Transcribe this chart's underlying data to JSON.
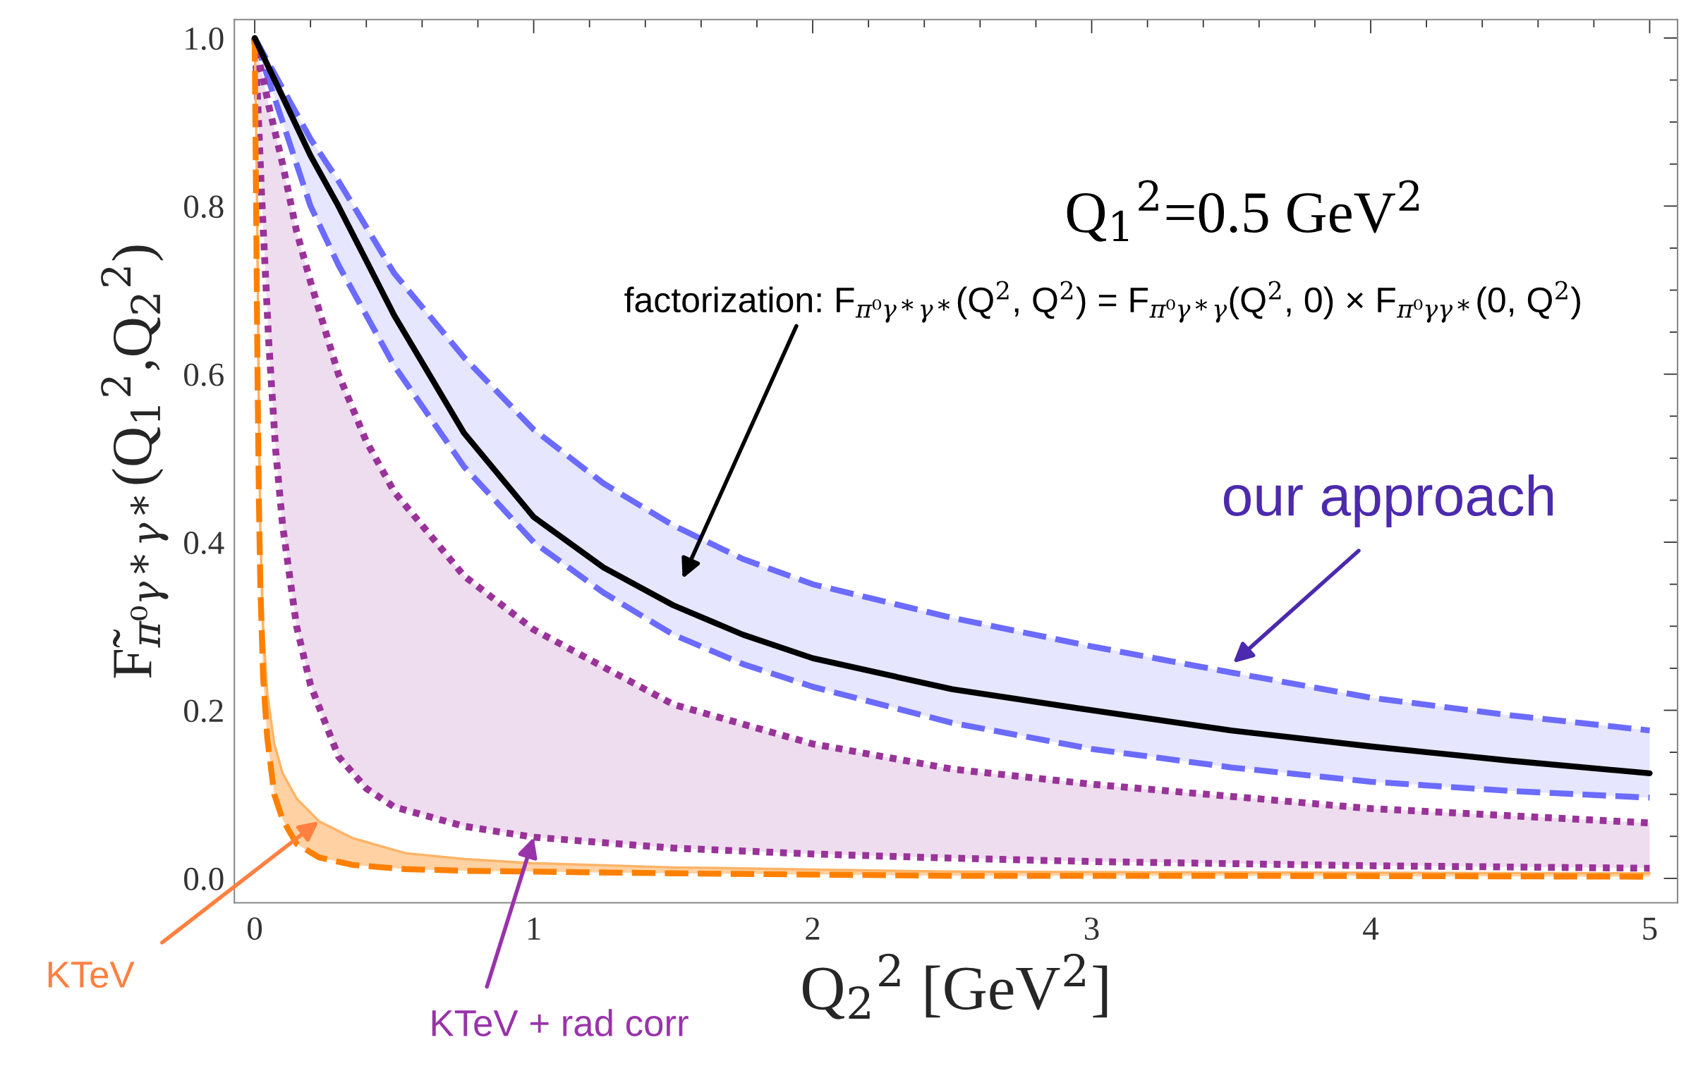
{
  "chart_data": {
    "type": "line",
    "xlabel": "Q$_{2}$$^{2}$ [GeV$^{2}$]",
    "ylabel": "F̃$_{π⁰γ*γ*}$(Q$_{1}$$^{2}$,Q$_{2}$$^{2}$)",
    "xlim": [
      -0.073,
      5.1
    ],
    "ylim": [
      -0.029,
      1.022
    ],
    "xticks": [
      0,
      1,
      2,
      3,
      4,
      5
    ],
    "yticks": [
      {
        "value": 0,
        "label": "0.0"
      },
      0.2,
      0.4,
      0.6,
      0.8,
      {
        "value": 1,
        "label": "1.0"
      }
    ],
    "grid": false,
    "legend": false,
    "series": [
      {
        "color": "#6b6bff",
        "line_style": "dashed",
        "x": [
          0,
          0.1,
          0.2,
          0.3,
          0.5,
          0.75,
          1,
          1.25,
          1.5,
          1.75,
          2,
          2.5,
          3,
          3.5,
          4,
          4.5,
          5
        ],
        "values": [
          1.0,
          0.94,
          0.88,
          0.83,
          0.72,
          0.62,
          0.534,
          0.47,
          0.42,
          0.38,
          0.35,
          0.31,
          0.276,
          0.245,
          0.215,
          0.194,
          0.176
        ],
        "lower": [
          1.0,
          0.9,
          0.8,
          0.73,
          0.61,
          0.49,
          0.4,
          0.34,
          0.29,
          0.255,
          0.228,
          0.185,
          0.154,
          0.132,
          0.115,
          0.104,
          0.096
        ],
        "upper": [
          1.0,
          0.94,
          0.88,
          0.83,
          0.72,
          0.62,
          0.534,
          0.47,
          0.42,
          0.38,
          0.35,
          0.31,
          0.276,
          0.245,
          0.215,
          0.194,
          0.176
        ]
      },
      {
        "color": "#6b6bff",
        "line_style": "dashed",
        "x": [
          0,
          0.1,
          0.2,
          0.3,
          0.5,
          0.75,
          1,
          1.25,
          1.5,
          1.75,
          2,
          2.5,
          3,
          3.5,
          4,
          4.5,
          5
        ],
        "values": [
          1.0,
          0.9,
          0.8,
          0.73,
          0.61,
          0.49,
          0.4,
          0.34,
          0.29,
          0.255,
          0.228,
          0.185,
          0.154,
          0.132,
          0.115,
          0.104,
          0.096
        ]
      },
      {
        "color": "#993399",
        "line_style": "dotted",
        "x": [
          0,
          0.01,
          0.025,
          0.05,
          0.075,
          0.1,
          0.15,
          0.2,
          0.3,
          0.4,
          0.5,
          0.75,
          1,
          1.5,
          2,
          2.5,
          3,
          4,
          5
        ],
        "values": [
          1.0,
          0.98,
          0.96,
          0.92,
          0.885,
          0.85,
          0.77,
          0.71,
          0.6,
          0.52,
          0.46,
          0.36,
          0.296,
          0.207,
          0.16,
          0.13,
          0.112,
          0.083,
          0.066
        ],
        "lower": [
          1.0,
          0.93,
          0.81,
          0.64,
          0.51,
          0.42,
          0.3,
          0.23,
          0.145,
          0.107,
          0.085,
          0.062,
          0.049,
          0.036,
          0.029,
          0.024,
          0.02,
          0.015,
          0.012
        ],
        "upper": [
          1.0,
          0.98,
          0.96,
          0.92,
          0.885,
          0.85,
          0.77,
          0.71,
          0.6,
          0.52,
          0.46,
          0.36,
          0.296,
          0.207,
          0.16,
          0.13,
          0.112,
          0.083,
          0.066
        ]
      },
      {
        "color": "#993399",
        "line_style": "dotted",
        "x": [
          0,
          0.01,
          0.025,
          0.05,
          0.075,
          0.1,
          0.15,
          0.2,
          0.3,
          0.4,
          0.5,
          0.75,
          1,
          1.5,
          2,
          2.5,
          3,
          4,
          5
        ],
        "values": [
          1.0,
          0.93,
          0.81,
          0.64,
          0.51,
          0.42,
          0.3,
          0.23,
          0.145,
          0.107,
          0.085,
          0.062,
          0.049,
          0.036,
          0.029,
          0.024,
          0.02,
          0.015,
          0.012
        ]
      },
      {
        "color": "#ffb366",
        "line_style": "solid",
        "x": [
          0,
          0.005,
          0.01,
          0.015,
          0.02,
          0.03,
          0.045,
          0.07,
          0.1,
          0.15,
          0.23,
          0.35,
          0.54,
          0.75,
          1,
          1.5,
          2.5,
          3.5,
          5
        ],
        "values": [
          1.0,
          0.9,
          0.75,
          0.55,
          0.42,
          0.3,
          0.22,
          0.16,
          0.125,
          0.095,
          0.068,
          0.048,
          0.03,
          0.023,
          0.018,
          0.013,
          0.008,
          0.007,
          0.006
        ],
        "lower": [
          1.0,
          0.8,
          0.6,
          0.45,
          0.35,
          0.24,
          0.167,
          0.1,
          0.07,
          0.041,
          0.025,
          0.016,
          0.011,
          0.009,
          0.008,
          0.006,
          0.003,
          0.003,
          0.002
        ],
        "upper": [
          1.0,
          0.9,
          0.75,
          0.55,
          0.42,
          0.3,
          0.22,
          0.16,
          0.125,
          0.095,
          0.068,
          0.048,
          0.03,
          0.023,
          0.018,
          0.013,
          0.008,
          0.007,
          0.006
        ]
      },
      {
        "color": "#ff8000",
        "line_style": "dashed",
        "x": [
          0,
          0.005,
          0.01,
          0.015,
          0.02,
          0.03,
          0.045,
          0.07,
          0.1,
          0.15,
          0.23,
          0.35,
          0.54,
          0.75,
          1,
          1.5,
          2.5,
          3.5,
          5
        ],
        "values": [
          1.0,
          0.8,
          0.6,
          0.45,
          0.35,
          0.24,
          0.167,
          0.1,
          0.07,
          0.041,
          0.025,
          0.016,
          0.011,
          0.009,
          0.008,
          0.006,
          0.003,
          0.003,
          0.002
        ]
      },
      {
        "color": "#000000",
        "line_style": "solid",
        "x": [
          0,
          0.1,
          0.2,
          0.3,
          0.5,
          0.75,
          1,
          1.25,
          1.5,
          1.75,
          2,
          2.5,
          3,
          3.5,
          4,
          4.5,
          5
        ],
        "values": [
          1.0,
          0.93,
          0.86,
          0.8,
          0.67,
          0.53,
          0.43,
          0.37,
          0.325,
          0.29,
          0.262,
          0.225,
          0.2,
          0.176,
          0.157,
          0.14,
          0.125
        ]
      }
    ],
    "annotations": [
      "Q$_{1}$$^{2}$=0.5 GeV$^{2}$",
      "factorization: F$_{π⁰γ*γ*}$(Q$^{2}$, Q$^{2}$) = F$_{π⁰γ*γ}$(Q$^{2}$, 0) × F$_{π⁰γγ*}$(0, Q$^{2}$)",
      "our approach",
      {
        "text": "KTeV",
        "x": 0.23,
        "y": 0.068
      },
      {
        "text": "KTeV + rad corr",
        "x": 1,
        "y": 0.049
      }
    ]
  }
}
